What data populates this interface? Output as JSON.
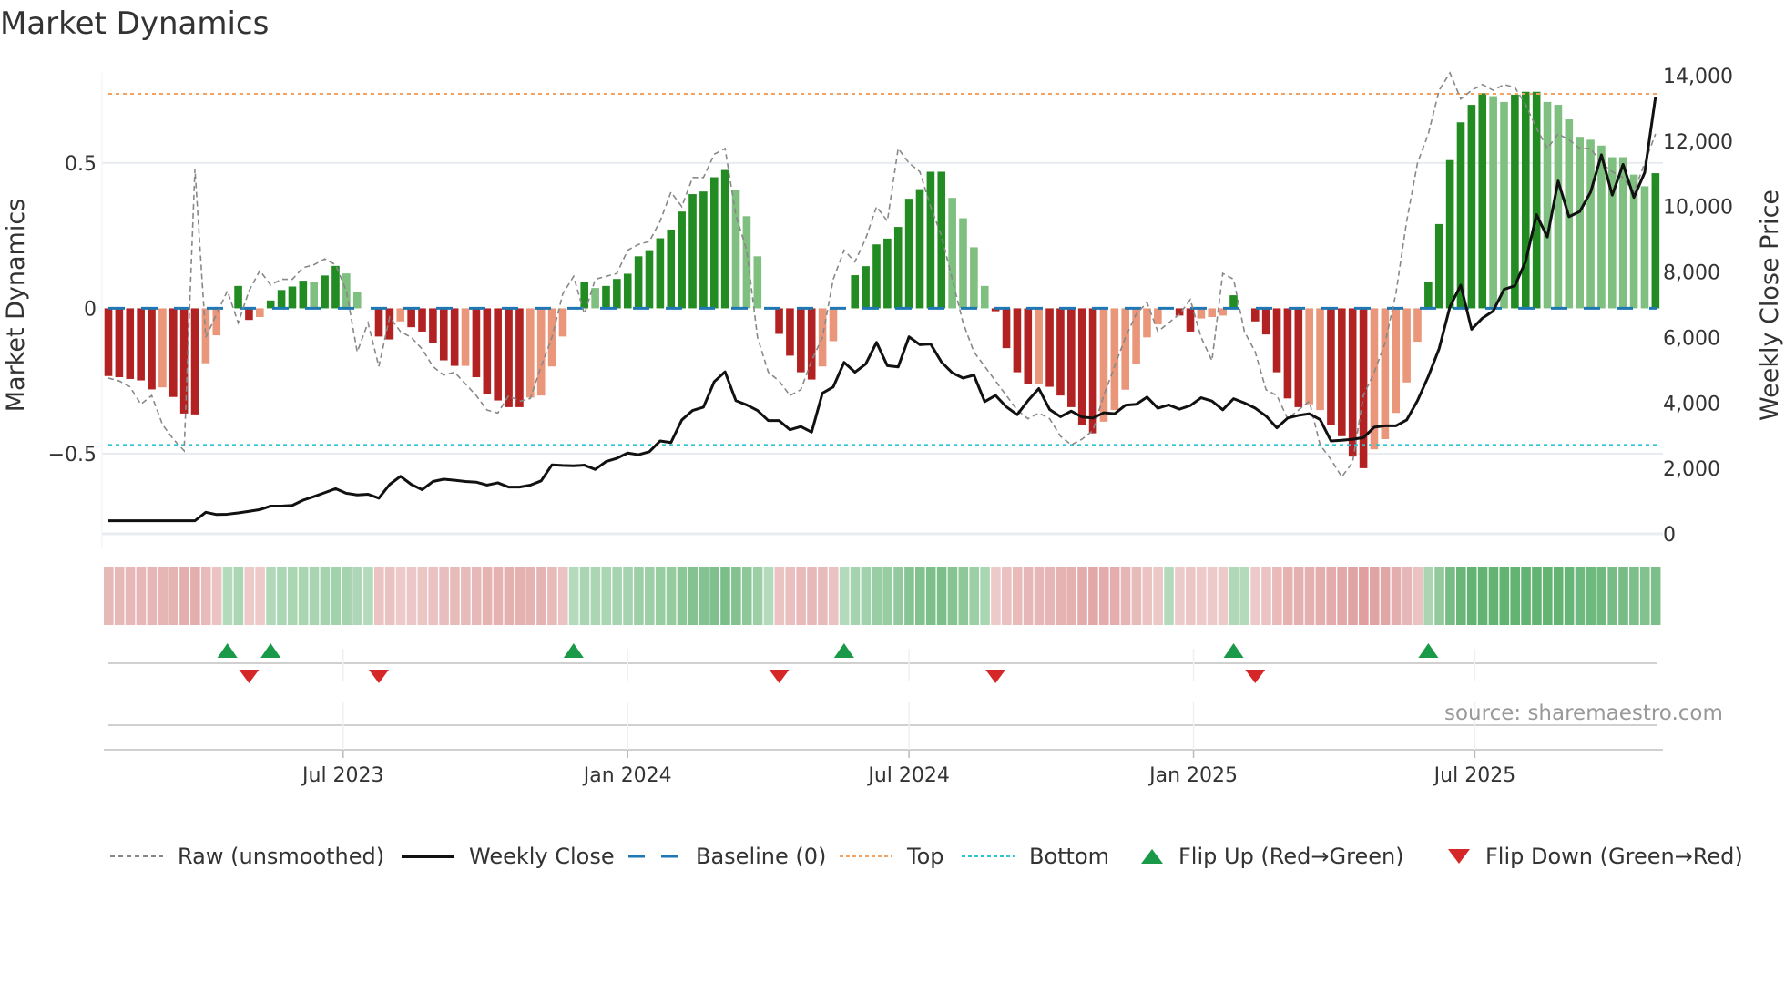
{
  "title": "Market Dynamics",
  "source": "source: sharemaestro.com",
  "colors": {
    "strong_green": "#228b22",
    "weak_green": "#7fbf7f",
    "strong_red": "#b22222",
    "weak_red": "#e9967a",
    "close": "#111111",
    "raw": "#888888",
    "baseline": "#1f77b4",
    "top": "#f4a261",
    "bottom": "#2ec4d6",
    "flip_up": "#1a9a48",
    "flip_down": "#d62728"
  },
  "legend": {
    "raw": "Raw (unsmoothed)",
    "close": "Weekly Close",
    "baseline": "Baseline (0)",
    "top": "Top",
    "bottom": "Bottom",
    "flip_up": "Flip Up (Red→Green)",
    "flip_down": "Flip Down (Green→Red)"
  },
  "chart_data": {
    "type": "bar",
    "title": "Market Dynamics",
    "ylabel": "Market Dynamics",
    "y2label": "Weekly Close Price",
    "ylim": [
      -0.776,
      0.81
    ],
    "y2lim": [
      0,
      14000
    ],
    "yticks": [
      {
        "v": 0.5,
        "label": "0.5"
      },
      {
        "v": 0,
        "label": "0"
      },
      {
        "v": -0.5,
        "label": "−0.5"
      }
    ],
    "y2ticks": [
      {
        "v": 0,
        "label": "0"
      },
      {
        "v": 2000,
        "label": "2,000"
      },
      {
        "v": 4000,
        "label": "4,000"
      },
      {
        "v": 6000,
        "label": "6,000"
      },
      {
        "v": 8000,
        "label": "8,000"
      },
      {
        "v": 10000,
        "label": "10,000"
      },
      {
        "v": 12000,
        "label": "12,000"
      },
      {
        "v": 14000,
        "label": "14,000"
      }
    ],
    "xticks": [
      {
        "week": 21.7,
        "label": "Jul 2023"
      },
      {
        "week": 48,
        "label": "Jan 2024"
      },
      {
        "week": 74,
        "label": "Jul 2024"
      },
      {
        "week": 100.3,
        "label": "Jan 2025"
      },
      {
        "week": 126.3,
        "label": "Jul 2025"
      }
    ],
    "top_level": 0.738,
    "bottom_level": -0.47,
    "baseline": 0,
    "values": [
      -0.233,
      -0.237,
      -0.243,
      -0.248,
      -0.279,
      -0.272,
      -0.305,
      -0.362,
      -0.365,
      -0.189,
      -0.093,
      0,
      0.077,
      -0.04,
      -0.03,
      0.027,
      0.063,
      0.075,
      0.095,
      0.09,
      0.113,
      0.146,
      0.12,
      0.055,
      0,
      -0.097,
      -0.107,
      -0.045,
      -0.065,
      -0.08,
      -0.118,
      -0.179,
      -0.198,
      -0.198,
      -0.237,
      -0.294,
      -0.317,
      -0.34,
      -0.34,
      -0.307,
      -0.3,
      -0.2,
      -0.097,
      0,
      0.091,
      0.07,
      0.077,
      0.101,
      0.119,
      0.179,
      0.2,
      0.241,
      0.271,
      0.333,
      0.393,
      0.402,
      0.451,
      0.476,
      0.407,
      0.317,
      0.179,
      0,
      -0.088,
      -0.163,
      -0.22,
      -0.245,
      -0.2,
      -0.113,
      0,
      0.114,
      0.145,
      0.22,
      0.24,
      0.28,
      0.377,
      0.41,
      0.47,
      0.47,
      0.38,
      0.31,
      0.21,
      0.077,
      -0.01,
      -0.137,
      -0.22,
      -0.26,
      -0.26,
      -0.27,
      -0.3,
      -0.34,
      -0.4,
      -0.43,
      -0.39,
      -0.35,
      -0.28,
      -0.19,
      -0.1,
      -0.055,
      0,
      -0.025,
      -0.08,
      -0.035,
      -0.03,
      -0.025,
      0.045,
      0,
      -0.045,
      -0.09,
      -0.22,
      -0.31,
      -0.34,
      -0.33,
      -0.35,
      -0.4,
      -0.44,
      -0.51,
      -0.55,
      -0.485,
      -0.45,
      -0.36,
      -0.255,
      -0.115,
      0.09,
      0.29,
      0.51,
      0.64,
      0.7,
      0.74,
      0.73,
      0.71,
      0.735,
      0.745,
      0.745,
      0.71,
      0.7,
      0.65,
      0.59,
      0.58,
      0.56,
      0.52,
      0.52,
      0.46,
      0.42,
      0.465
    ],
    "strong": [
      1,
      1,
      1,
      1,
      1,
      0,
      1,
      1,
      1,
      0,
      0,
      0,
      1,
      1,
      0,
      1,
      1,
      1,
      1,
      0,
      1,
      1,
      0,
      0,
      0,
      1,
      1,
      0,
      1,
      1,
      1,
      1,
      1,
      0,
      1,
      1,
      1,
      1,
      1,
      0,
      0,
      0,
      0,
      0,
      1,
      0,
      1,
      1,
      1,
      1,
      1,
      1,
      1,
      1,
      1,
      1,
      1,
      1,
      0,
      0,
      0,
      0,
      1,
      1,
      1,
      1,
      0,
      0,
      0,
      1,
      1,
      1,
      1,
      1,
      1,
      1,
      1,
      1,
      0,
      0,
      0,
      0,
      1,
      1,
      1,
      1,
      0,
      1,
      1,
      1,
      1,
      1,
      0,
      0,
      0,
      0,
      0,
      0,
      0,
      1,
      1,
      0,
      0,
      0,
      1,
      0,
      1,
      1,
      1,
      1,
      1,
      0,
      0,
      1,
      1,
      1,
      1,
      0,
      0,
      0,
      0,
      0,
      1,
      1,
      1,
      1,
      1,
      1,
      0,
      0,
      1,
      1,
      1,
      0,
      0,
      0,
      0,
      0,
      0,
      0,
      0,
      0,
      0,
      1
    ],
    "raw": [
      -0.24,
      -0.25,
      -0.27,
      -0.33,
      -0.3,
      -0.4,
      -0.45,
      -0.49,
      0.48,
      -0.1,
      -0.02,
      0.06,
      -0.05,
      0.06,
      0.13,
      0.08,
      0.1,
      0.1,
      0.14,
      0.15,
      0.17,
      0.15,
      0.06,
      -0.15,
      -0.05,
      -0.2,
      -0.03,
      -0.08,
      -0.1,
      -0.14,
      -0.2,
      -0.23,
      -0.22,
      -0.26,
      -0.3,
      -0.35,
      -0.36,
      -0.3,
      -0.32,
      -0.31,
      -0.2,
      -0.1,
      0.05,
      0.11,
      -0.02,
      0.1,
      0.11,
      0.12,
      0.2,
      0.22,
      0.23,
      0.3,
      0.4,
      0.35,
      0.45,
      0.45,
      0.53,
      0.55,
      0.32,
      0.2,
      -0.1,
      -0.22,
      -0.25,
      -0.3,
      -0.28,
      -0.18,
      -0.1,
      0.1,
      0.2,
      0.16,
      0.24,
      0.35,
      0.3,
      0.55,
      0.5,
      0.47,
      0.35,
      0.25,
      0.1,
      -0.05,
      -0.15,
      -0.2,
      -0.25,
      -0.3,
      -0.35,
      -0.38,
      -0.36,
      -0.38,
      -0.44,
      -0.47,
      -0.45,
      -0.42,
      -0.3,
      -0.2,
      -0.1,
      -0.02,
      0.02,
      -0.08,
      -0.05,
      -0.02,
      0.03,
      -0.1,
      -0.18,
      0.12,
      0.1,
      -0.08,
      -0.15,
      -0.28,
      -0.3,
      -0.38,
      -0.35,
      -0.32,
      -0.47,
      -0.52,
      -0.58,
      -0.53,
      -0.3,
      -0.22,
      -0.12,
      0.05,
      0.3,
      0.5,
      0.6,
      0.75,
      0.81,
      0.72,
      0.75,
      0.77,
      0.75,
      0.77,
      0.76,
      0.7,
      0.62,
      0.55,
      0.6,
      0.58,
      0.55,
      0.55,
      0.5,
      0.47,
      0.45,
      0.4,
      0.5,
      0.6
    ],
    "close": [
      400,
      400,
      400,
      400,
      400,
      400,
      400,
      400,
      400,
      660,
      590,
      600,
      640,
      690,
      740,
      850,
      850,
      870,
      1030,
      1140,
      1260,
      1380,
      1240,
      1190,
      1210,
      1090,
      1510,
      1760,
      1510,
      1350,
      1600,
      1670,
      1640,
      1600,
      1580,
      1490,
      1560,
      1430,
      1430,
      1490,
      1620,
      2110,
      2090,
      2080,
      2100,
      1970,
      2210,
      2310,
      2470,
      2420,
      2510,
      2840,
      2790,
      3480,
      3770,
      3870,
      4650,
      4950,
      4070,
      3940,
      3770,
      3460,
      3460,
      3180,
      3280,
      3110,
      4300,
      4490,
      5240,
      4940,
      5190,
      5850,
      5140,
      5100,
      6020,
      5780,
      5800,
      5250,
      4920,
      4760,
      4850,
      4040,
      4230,
      3880,
      3640,
      4070,
      4440,
      3800,
      3580,
      3750,
      3570,
      3540,
      3700,
      3670,
      3930,
      3960,
      4180,
      3840,
      3940,
      3810,
      3920,
      4160,
      4060,
      3790,
      4130,
      4000,
      3840,
      3600,
      3240,
      3540,
      3620,
      3670,
      3490,
      2840,
      2860,
      2890,
      2940,
      3260,
      3300,
      3300,
      3480,
      4070,
      4810,
      5660,
      6940,
      7600,
      6250,
      6590,
      6810,
      7470,
      7580,
      8330,
      9750,
      9070,
      10780,
      9690,
      9850,
      10440,
      11580,
      10350,
      11290,
      10280,
      11040,
      13350
    ],
    "flip_up_weeks": [
      11,
      15,
      43,
      68,
      104,
      122
    ],
    "flip_down_weeks": [
      13,
      25,
      62,
      82,
      106
    ]
  }
}
